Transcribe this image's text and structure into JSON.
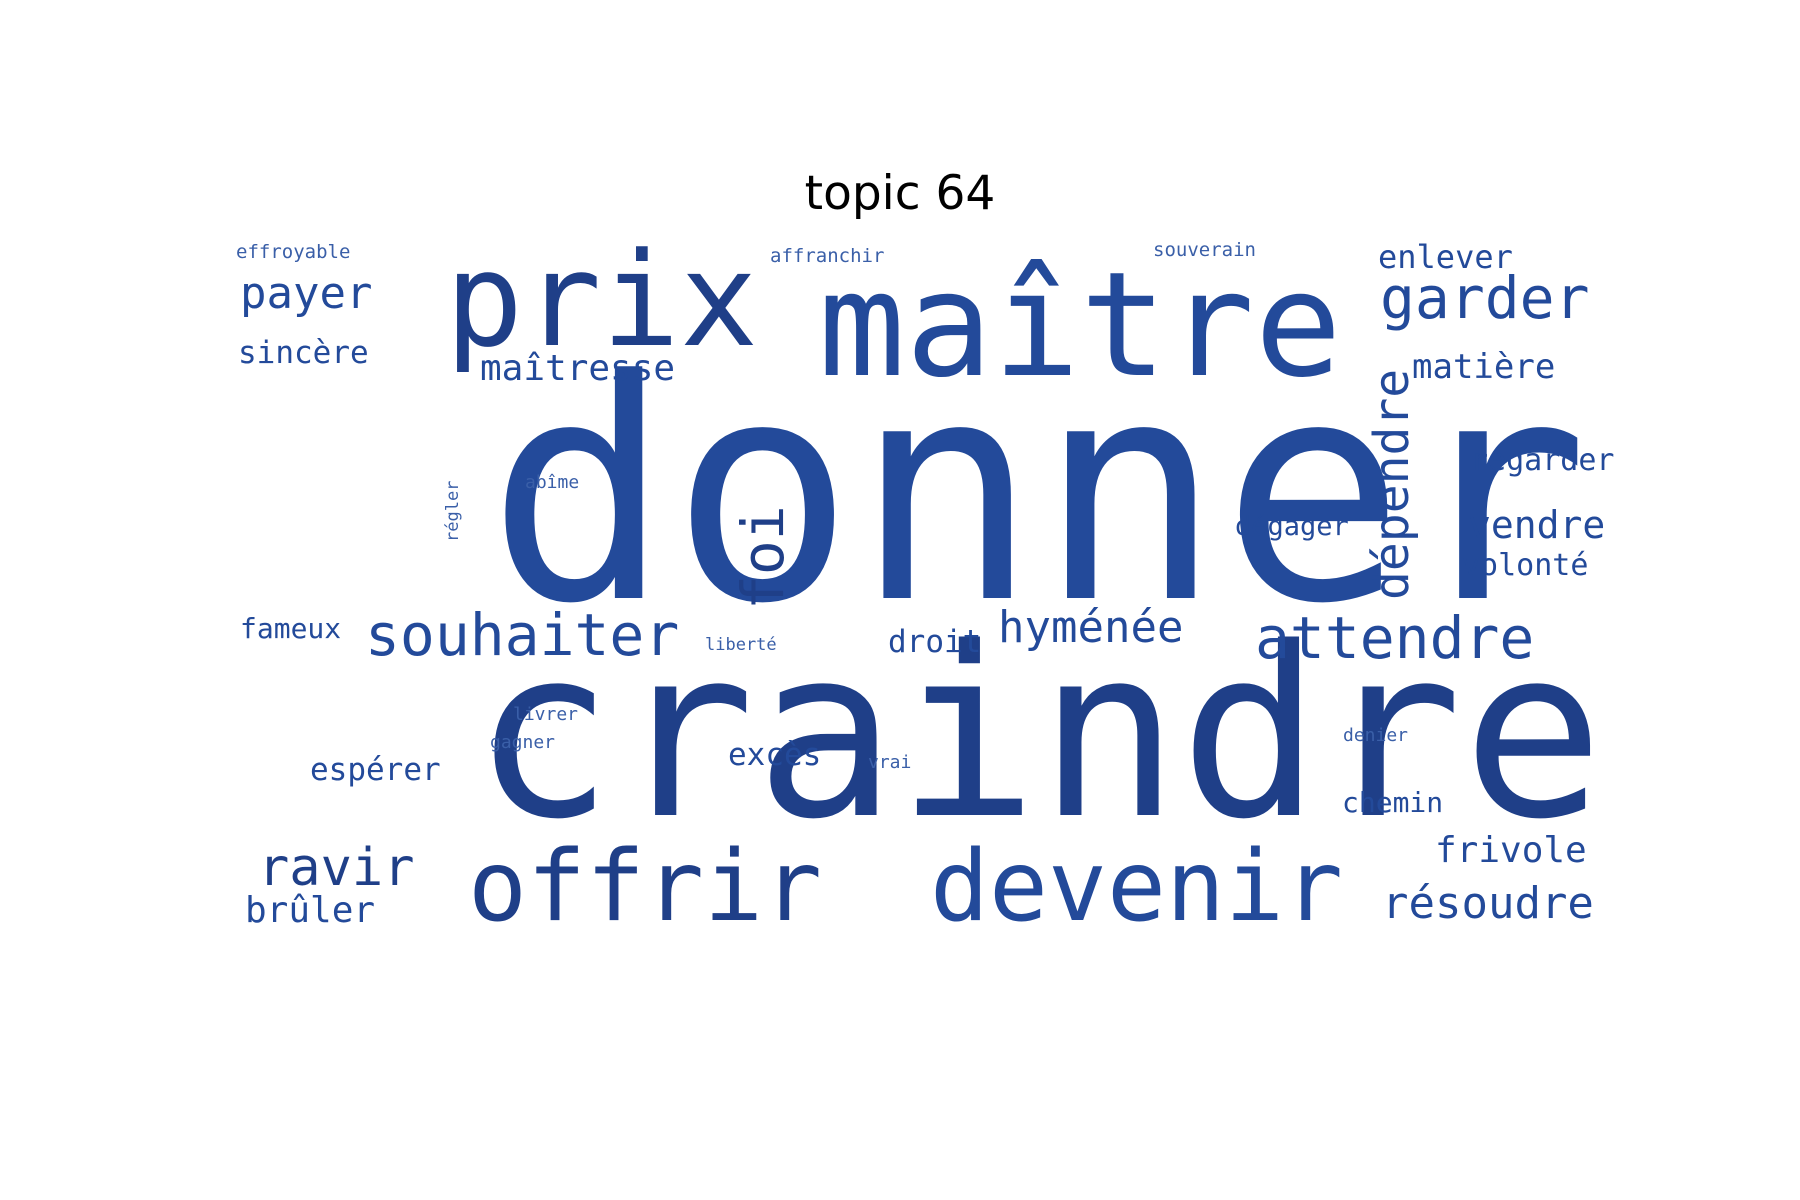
{
  "title": "topic 64",
  "colors": {
    "word": "#234a9a",
    "word_dark": "#1f3f88",
    "word_light": "#3a5fa8",
    "background": "#ffffff",
    "title": "#000000"
  },
  "words": [
    {
      "text": "donner",
      "weight": 1.0,
      "rotated": false
    },
    {
      "text": "craindre",
      "weight": 0.88,
      "rotated": false
    },
    {
      "text": "maître",
      "weight": 0.6,
      "rotated": false
    },
    {
      "text": "prix",
      "weight": 0.5,
      "rotated": false
    },
    {
      "text": "offrir",
      "weight": 0.42,
      "rotated": false
    },
    {
      "text": "devenir",
      "weight": 0.42,
      "rotated": false
    },
    {
      "text": "garder",
      "weight": 0.22,
      "rotated": false
    },
    {
      "text": "attendre",
      "weight": 0.22,
      "rotated": false
    },
    {
      "text": "souhaiter",
      "weight": 0.22,
      "rotated": false
    },
    {
      "text": "foi",
      "weight": 0.22,
      "rotated": true
    },
    {
      "text": "dépendre",
      "weight": 0.2,
      "rotated": true
    },
    {
      "text": "ravir",
      "weight": 0.2,
      "rotated": false
    },
    {
      "text": "résoudre",
      "weight": 0.17,
      "rotated": false
    },
    {
      "text": "hyménée",
      "weight": 0.16,
      "rotated": false
    },
    {
      "text": "payer",
      "weight": 0.16,
      "rotated": false
    },
    {
      "text": "maîtresse",
      "weight": 0.13,
      "rotated": false
    },
    {
      "text": "vendre",
      "weight": 0.13,
      "rotated": false
    },
    {
      "text": "frivole",
      "weight": 0.13,
      "rotated": false
    },
    {
      "text": "brûler",
      "weight": 0.13,
      "rotated": false
    },
    {
      "text": "matière",
      "weight": 0.13,
      "rotated": false
    },
    {
      "text": "enlever",
      "weight": 0.12,
      "rotated": false
    },
    {
      "text": "regarder",
      "weight": 0.11,
      "rotated": false
    },
    {
      "text": "volonté",
      "weight": 0.11,
      "rotated": false
    },
    {
      "text": "sincère",
      "weight": 0.11,
      "rotated": false
    },
    {
      "text": "espérer",
      "weight": 0.11,
      "rotated": false
    },
    {
      "text": "excès",
      "weight": 0.11,
      "rotated": false
    },
    {
      "text": "droit",
      "weight": 0.11,
      "rotated": false
    },
    {
      "text": "chemin",
      "weight": 0.1,
      "rotated": false
    },
    {
      "text": "fameux",
      "weight": 0.1,
      "rotated": false
    },
    {
      "text": "dégager",
      "weight": 0.1,
      "rotated": false
    },
    {
      "text": "effroyable",
      "weight": 0.07,
      "rotated": false
    },
    {
      "text": "affranchir",
      "weight": 0.07,
      "rotated": false
    },
    {
      "text": "souverain",
      "weight": 0.07,
      "rotated": false
    },
    {
      "text": "abîme",
      "weight": 0.06,
      "rotated": false
    },
    {
      "text": "régler",
      "weight": 0.06,
      "rotated": true
    },
    {
      "text": "liberté",
      "weight": 0.06,
      "rotated": false
    },
    {
      "text": "livrer",
      "weight": 0.06,
      "rotated": false
    },
    {
      "text": "gagner",
      "weight": 0.06,
      "rotated": false
    },
    {
      "text": "vrai",
      "weight": 0.06,
      "rotated": false
    },
    {
      "text": "denier",
      "weight": 0.06,
      "rotated": false
    }
  ]
}
